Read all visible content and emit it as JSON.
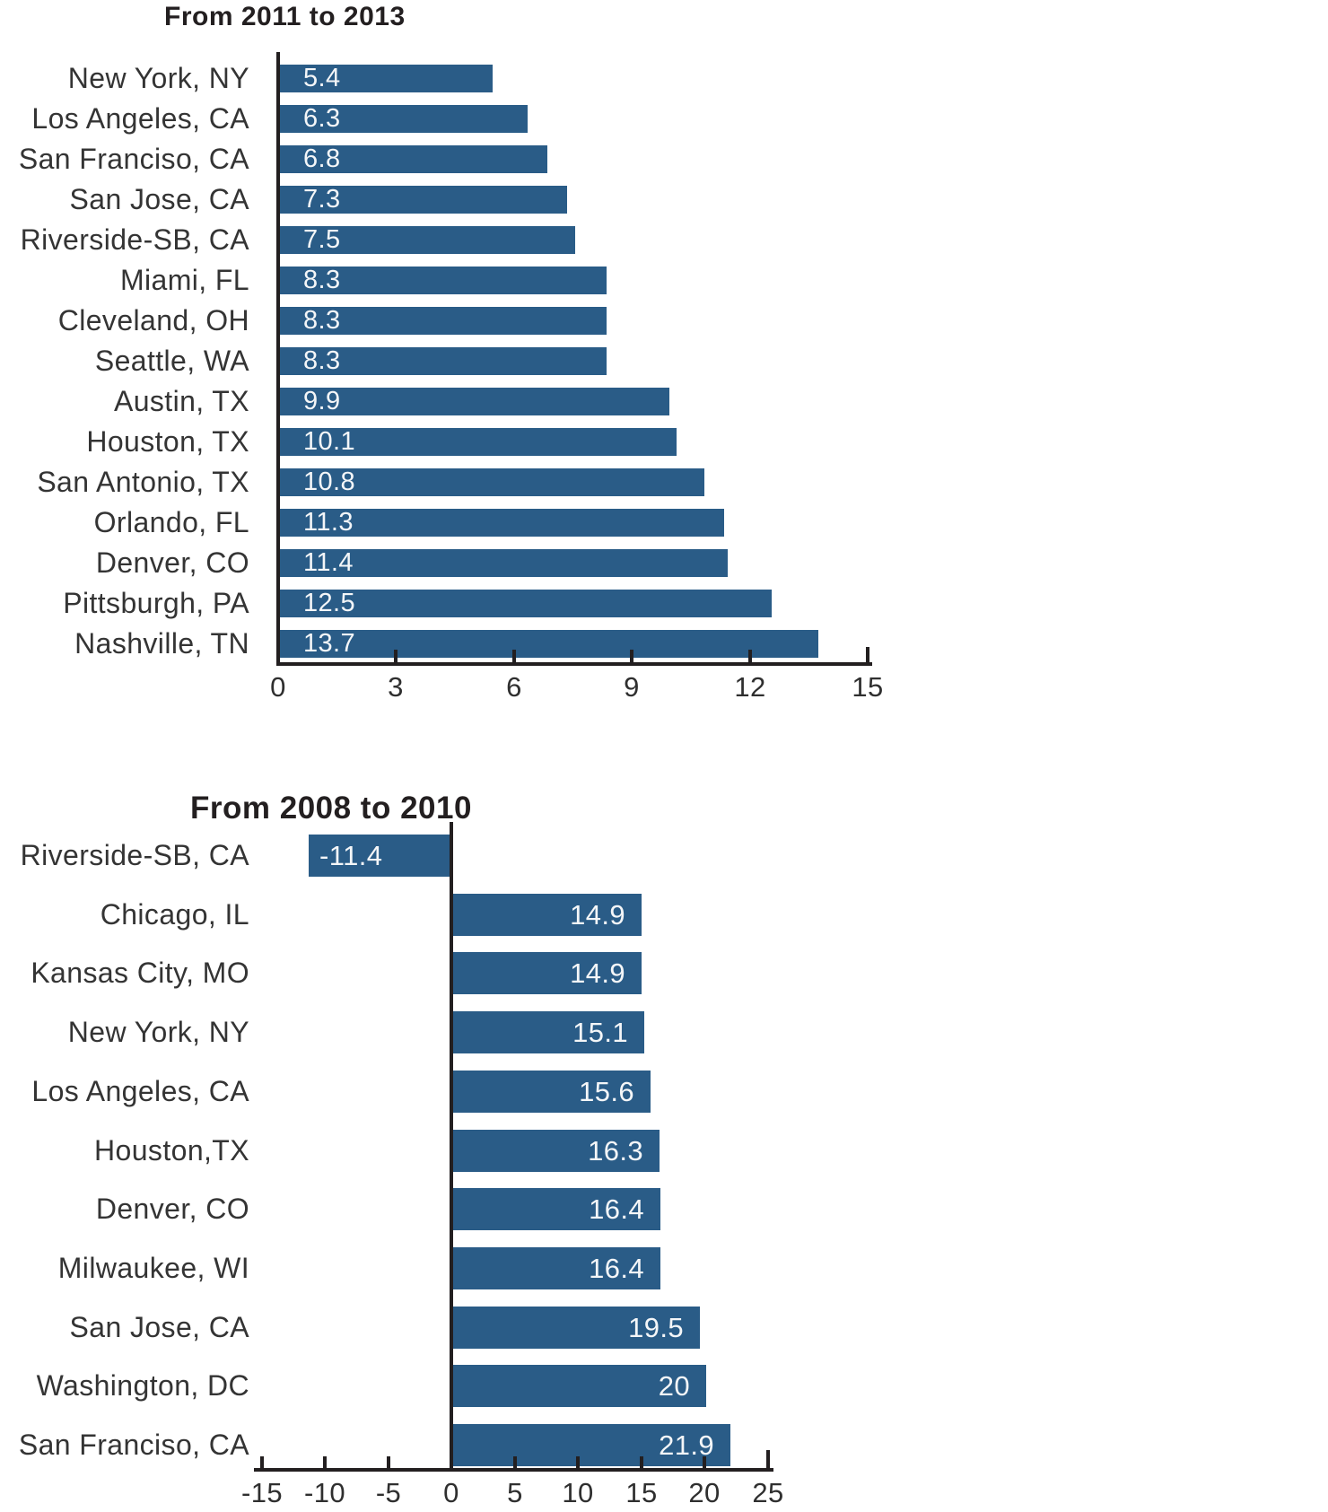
{
  "colors": {
    "bar_fill": "#2A5C87",
    "axis_line": "#231F20",
    "category_label_text": "#343434",
    "value_label_text": "#F4F6F8",
    "title_text": "#231F20",
    "background": "#FFFFFF"
  },
  "chart_data": [
    {
      "type": "bar",
      "orientation": "horizontal",
      "title": "From 2011 to 2013",
      "categories": [
        "New York, NY",
        "Los Angeles, CA",
        "San Franciso, CA",
        "San Jose, CA",
        "Riverside-SB, CA",
        "Miami, FL",
        "Cleveland, OH",
        "Seattle, WA",
        "Austin, TX",
        "Houston, TX",
        "San Antonio, TX",
        "Orlando, FL",
        "Denver, CO",
        "Pittsburgh, PA",
        "Nashville, TN"
      ],
      "values": [
        5.4,
        6.3,
        6.8,
        7.3,
        7.5,
        8.3,
        8.3,
        8.3,
        9.9,
        10.1,
        10.8,
        11.3,
        11.4,
        12.5,
        13.7
      ],
      "value_labels": [
        "5.4",
        "6.3",
        "6.8",
        "7.3",
        "7.5",
        "8.3",
        "8.3",
        "8.3",
        "9.9",
        "10.1",
        "10.8",
        "11.3",
        "11.4",
        "12.5",
        "13.7"
      ],
      "value_label_position": "bar-start",
      "xlim": [
        0,
        15
      ],
      "xticks": [
        0,
        3,
        6,
        9,
        12,
        15
      ],
      "xtick_labels": [
        "0",
        "3",
        "6",
        "9",
        "12",
        "15"
      ],
      "grid": false,
      "legend": "none"
    },
    {
      "type": "bar",
      "orientation": "horizontal",
      "title": "From 2008 to 2010",
      "categories": [
        "Riverside-SB, CA",
        "Chicago, IL",
        "Kansas City, MO",
        "New York, NY",
        "Los Angeles, CA",
        "Houston,TX",
        "Denver, CO",
        "Milwaukee, WI",
        "San Jose, CA",
        "Washington, DC",
        "San Franciso, CA"
      ],
      "values": [
        -11.4,
        14.9,
        14.9,
        15.1,
        15.6,
        16.3,
        16.4,
        16.4,
        19.5,
        20,
        21.9
      ],
      "value_labels": [
        "-11.4",
        "14.9",
        "14.9",
        "15.1",
        "15.6",
        "16.3",
        "16.4",
        "16.4",
        "19.5",
        "20",
        "21.9"
      ],
      "value_label_position": "bar-end",
      "xlim": [
        -15,
        25
      ],
      "xticks": [
        -15,
        -10,
        -5,
        0,
        5,
        10,
        15,
        20,
        25
      ],
      "xtick_labels": [
        "-15",
        "-10",
        "-5",
        "0",
        "5",
        "10",
        "15",
        "20",
        "25"
      ],
      "grid": false,
      "legend": "none"
    }
  ]
}
